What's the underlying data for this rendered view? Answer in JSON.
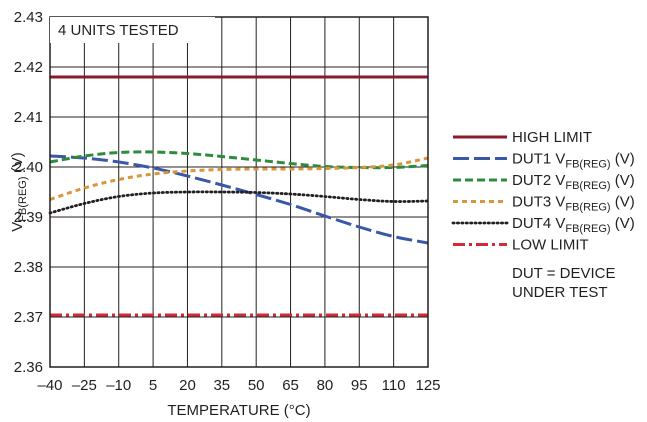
{
  "chart_data": {
    "type": "line",
    "xlabel": "TEMPERATURE (°C)",
    "ylabel_main": "V",
    "ylabel_sub": "FB(REG)",
    "ylabel_unit": " (V)",
    "x_ticks": [
      -40,
      -25,
      -10,
      5,
      20,
      35,
      50,
      65,
      80,
      95,
      110,
      125
    ],
    "x_tick_labels": [
      "–40",
      "–25",
      "–10",
      "5",
      "20",
      "35",
      "50",
      "65",
      "80",
      "95",
      "110",
      "125"
    ],
    "y_ticks": [
      2.36,
      2.37,
      2.38,
      2.39,
      2.4,
      2.41,
      2.42,
      2.43
    ],
    "y_tick_labels": [
      "2.36",
      "2.37",
      "2.38",
      "2.39",
      "2.40",
      "2.41",
      "2.42",
      "2.43"
    ],
    "xlim": [
      -40,
      125
    ],
    "ylim": [
      2.36,
      2.43
    ],
    "grid": true,
    "annotation": "4 UNITS TESTED",
    "footnote": [
      "DUT = DEVICE",
      "UNDER TEST"
    ],
    "series": [
      {
        "name": "HIGH LIMIT",
        "color": "#8b1a2b",
        "style": "solid",
        "x": [
          -40,
          125
        ],
        "y": [
          2.418,
          2.418
        ]
      },
      {
        "name": "DUT1",
        "color": "#3a58a8",
        "style": "longdash",
        "x": [
          -40,
          -25,
          -10,
          5,
          20,
          35,
          50,
          65,
          80,
          95,
          110,
          125
        ],
        "y": [
          2.4022,
          2.4018,
          2.401,
          2.3998,
          2.3982,
          2.3964,
          2.3945,
          2.3925,
          2.3902,
          2.388,
          2.3861,
          2.3848
        ]
      },
      {
        "name": "DUT2",
        "color": "#2e8b3e",
        "style": "dash",
        "x": [
          -40,
          -25,
          -10,
          5,
          20,
          35,
          50,
          65,
          80,
          95,
          110,
          125
        ],
        "y": [
          2.401,
          2.4022,
          2.4029,
          2.403,
          2.4027,
          2.4021,
          2.4014,
          2.4007,
          2.4001,
          2.3999,
          2.3999,
          2.4003
        ]
      },
      {
        "name": "DUT3",
        "color": "#d9963a",
        "style": "shortdash",
        "x": [
          -40,
          -25,
          -10,
          5,
          20,
          35,
          50,
          65,
          80,
          95,
          110,
          125
        ],
        "y": [
          2.3935,
          2.3958,
          2.3975,
          2.3986,
          2.3992,
          2.3995,
          2.3996,
          2.3996,
          2.3997,
          2.3999,
          2.4004,
          2.4018
        ]
      },
      {
        "name": "DUT4",
        "color": "#231f20",
        "style": "dot",
        "x": [
          -40,
          -25,
          -10,
          5,
          20,
          35,
          50,
          65,
          80,
          95,
          110,
          125
        ],
        "y": [
          2.3908,
          2.3927,
          2.3941,
          2.3948,
          2.395,
          2.395,
          2.3949,
          2.3946,
          2.3941,
          2.3935,
          2.3931,
          2.3932
        ]
      },
      {
        "name": "LOW LIMIT",
        "color": "#d42a35",
        "style": "dashdot",
        "x": [
          -40,
          125
        ],
        "y": [
          2.3704,
          2.3704
        ]
      }
    ],
    "legend": [
      {
        "main": "HIGH LIMIT",
        "sub": "",
        "tail": "",
        "color": "#8b1a2b",
        "style": "solid"
      },
      {
        "main": "DUT1 V",
        "sub": "FB(REG)",
        "tail": " (V)",
        "color": "#3a58a8",
        "style": "longdash"
      },
      {
        "main": "DUT2 V",
        "sub": "FB(REG)",
        "tail": " (V)",
        "color": "#2e8b3e",
        "style": "dash"
      },
      {
        "main": "DUT3 V",
        "sub": "FB(REG)",
        "tail": " (V)",
        "color": "#d9963a",
        "style": "shortdash"
      },
      {
        "main": "DUT4 V",
        "sub": "FB(REG)",
        "tail": " (V)",
        "color": "#231f20",
        "style": "dot"
      },
      {
        "main": "LOW LIMIT",
        "sub": "",
        "tail": "",
        "color": "#d42a35",
        "style": "dashdot"
      }
    ],
    "legend_placement": "right"
  }
}
